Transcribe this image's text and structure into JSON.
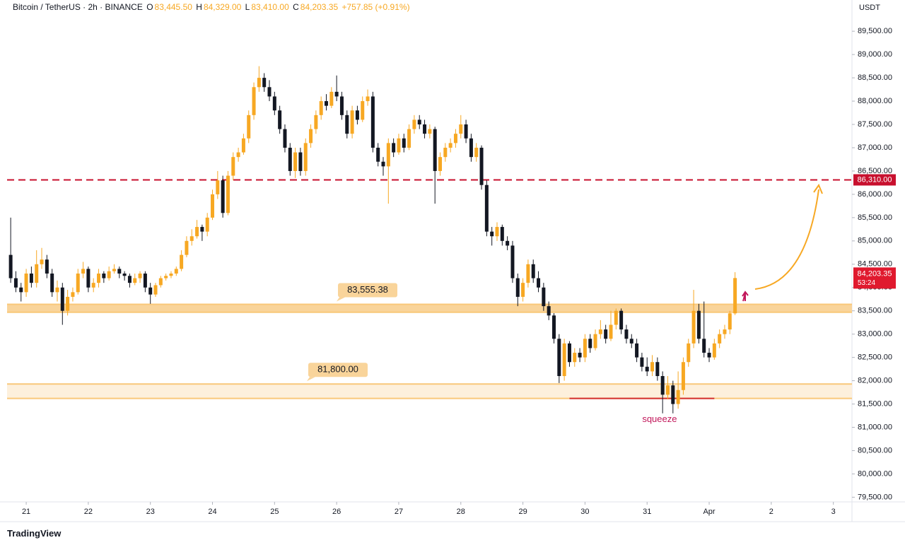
{
  "header": {
    "symbol": "Bitcoin / TetherUS · 2h · BINANCE",
    "ohlc": [
      {
        "label": "O",
        "value": "83,445.50"
      },
      {
        "label": "H",
        "value": "84,329.00"
      },
      {
        "label": "L",
        "value": "83,410.00"
      },
      {
        "label": "C",
        "value": "84,203.35"
      }
    ],
    "change": "+757.85 (+0.91%)"
  },
  "footer": {
    "brand": "TradingView"
  },
  "chart_data": {
    "type": "candlestick",
    "currency": "USDT",
    "up_color": "#f7a823",
    "down_color": "#131722",
    "ylim": [
      79400,
      90170
    ],
    "xlim": [
      -0.7,
      162.6
    ],
    "yticks": [
      {
        "value": 79500,
        "label": "79,500.00"
      },
      {
        "value": 80000,
        "label": "80,000.00"
      },
      {
        "value": 80500,
        "label": "80,500.00"
      },
      {
        "value": 81000,
        "label": "81,000.00"
      },
      {
        "value": 81500,
        "label": "81,500.00"
      },
      {
        "value": 82000,
        "label": "82,000.00"
      },
      {
        "value": 82500,
        "label": "82,500.00"
      },
      {
        "value": 83000,
        "label": "83,000.00"
      },
      {
        "value": 83500,
        "label": "83,500.00"
      },
      {
        "value": 84000,
        "label": "84,000.00"
      },
      {
        "value": 84500,
        "label": "84,500.00"
      },
      {
        "value": 85000,
        "label": "85,000.00"
      },
      {
        "value": 85500,
        "label": "85,500.00"
      },
      {
        "value": 86000,
        "label": "86,000.00"
      },
      {
        "value": 86500,
        "label": "86,500.00"
      },
      {
        "value": 87000,
        "label": "87,000.00"
      },
      {
        "value": 87500,
        "label": "87,500.00"
      },
      {
        "value": 88000,
        "label": "88,000.00"
      },
      {
        "value": 88500,
        "label": "88,500.00"
      },
      {
        "value": 89000,
        "label": "89,000.00"
      },
      {
        "value": 89500,
        "label": "89,500.00"
      }
    ],
    "xticks": [
      {
        "value": 3,
        "label": "21"
      },
      {
        "value": 15,
        "label": "22"
      },
      {
        "value": 27,
        "label": "23"
      },
      {
        "value": 39,
        "label": "24"
      },
      {
        "value": 51,
        "label": "25"
      },
      {
        "value": 63,
        "label": "26"
      },
      {
        "value": 75,
        "label": "27"
      },
      {
        "value": 87,
        "label": "28"
      },
      {
        "value": 99,
        "label": "29"
      },
      {
        "value": 111,
        "label": "30"
      },
      {
        "value": 123,
        "label": "31"
      },
      {
        "value": 135,
        "label": "Apr"
      },
      {
        "value": 147,
        "label": "2"
      },
      {
        "value": 159,
        "label": "3"
      }
    ],
    "grid": false,
    "levels": [
      {
        "value": 86310,
        "label": "86,310.00",
        "color": "#c8102e"
      }
    ],
    "zones": [
      {
        "low": 83470,
        "high": 83640,
        "label": "83,555.38",
        "color": "#f9d49a"
      },
      {
        "low": 81620,
        "high": 81930,
        "label": "81,800.00",
        "color": "#fdf0dc"
      }
    ],
    "last_price": {
      "value": 84203.35,
      "label": "84,203.35",
      "countdown": "53:24",
      "color": "#e0192e"
    },
    "annotation": {
      "text": "squeeze",
      "value": 81620,
      "from": 108,
      "to": 136,
      "color": "#c2185b"
    },
    "ohlc": [
      [
        84700,
        85500,
        84100,
        84200
      ],
      [
        84200,
        84350,
        83900,
        84000
      ],
      [
        84000,
        84100,
        83700,
        83900
      ],
      [
        83900,
        84400,
        83800,
        84300
      ],
      [
        84300,
        84450,
        84000,
        84100
      ],
      [
        84100,
        84800,
        84000,
        84500
      ],
      [
        84500,
        84850,
        84400,
        84600
      ],
      [
        84600,
        84700,
        84200,
        84300
      ],
      [
        84300,
        84400,
        83800,
        83900
      ],
      [
        83900,
        84150,
        83700,
        84000
      ],
      [
        84000,
        84100,
        83200,
        83500
      ],
      [
        83500,
        83950,
        83400,
        83800
      ],
      [
        83800,
        84000,
        83700,
        83900
      ],
      [
        83900,
        84400,
        83850,
        84300
      ],
      [
        84300,
        84550,
        84200,
        84400
      ],
      [
        84400,
        84450,
        83900,
        84000
      ],
      [
        84000,
        84200,
        83900,
        84100
      ],
      [
        84100,
        84400,
        84000,
        84300
      ],
      [
        84300,
        84350,
        84100,
        84200
      ],
      [
        84200,
        84450,
        84150,
        84350
      ],
      [
        84350,
        84500,
        84300,
        84400
      ],
      [
        84400,
        84450,
        84200,
        84300
      ],
      [
        84300,
        84350,
        84150,
        84250
      ],
      [
        84250,
        84300,
        84000,
        84100
      ],
      [
        84100,
        84300,
        84050,
        84200
      ],
      [
        84200,
        84350,
        84100,
        84300
      ],
      [
        84300,
        84350,
        83900,
        84000
      ],
      [
        84000,
        84100,
        83650,
        83850
      ],
      [
        83850,
        84100,
        83800,
        84050
      ],
      [
        84050,
        84250,
        84000,
        84200
      ],
      [
        84200,
        84300,
        84150,
        84250
      ],
      [
        84250,
        84350,
        84200,
        84300
      ],
      [
        84300,
        84450,
        84250,
        84400
      ],
      [
        84400,
        84800,
        84350,
        84700
      ],
      [
        84700,
        85100,
        84650,
        85000
      ],
      [
        85000,
        85250,
        84900,
        85100
      ],
      [
        85100,
        85450,
        85050,
        85300
      ],
      [
        85300,
        85350,
        85000,
        85200
      ],
      [
        85200,
        85600,
        85100,
        85500
      ],
      [
        85500,
        86100,
        85450,
        86000
      ],
      [
        86000,
        86500,
        85900,
        86300
      ],
      [
        86300,
        86400,
        85500,
        85600
      ],
      [
        85600,
        86500,
        85550,
        86400
      ],
      [
        86400,
        86900,
        86300,
        86800
      ],
      [
        86800,
        87000,
        86700,
        86900
      ],
      [
        86900,
        87300,
        86850,
        87200
      ],
      [
        87200,
        87800,
        87100,
        87700
      ],
      [
        87700,
        88400,
        87600,
        88300
      ],
      [
        88300,
        88750,
        88200,
        88500
      ],
      [
        88500,
        88600,
        88200,
        88300
      ],
      [
        88300,
        88450,
        88000,
        88100
      ],
      [
        88100,
        88200,
        87700,
        87800
      ],
      [
        87800,
        87900,
        87300,
        87400
      ],
      [
        87400,
        87500,
        86900,
        87000
      ],
      [
        87000,
        87100,
        86400,
        86500
      ],
      [
        86500,
        87000,
        86350,
        86900
      ],
      [
        86900,
        87000,
        86400,
        86500
      ],
      [
        86500,
        87200,
        86400,
        87100
      ],
      [
        87100,
        87500,
        87000,
        87400
      ],
      [
        87400,
        87800,
        87300,
        87700
      ],
      [
        87700,
        88100,
        87600,
        88000
      ],
      [
        88000,
        88150,
        87800,
        87900
      ],
      [
        87900,
        88300,
        87850,
        88200
      ],
      [
        88200,
        88550,
        88000,
        88100
      ],
      [
        88100,
        88200,
        87600,
        87700
      ],
      [
        87700,
        87800,
        87200,
        87300
      ],
      [
        87300,
        87900,
        87200,
        87800
      ],
      [
        87800,
        87900,
        87500,
        87600
      ],
      [
        87600,
        88100,
        87550,
        88000
      ],
      [
        88000,
        88250,
        87900,
        88100
      ],
      [
        88100,
        88200,
        86900,
        87000
      ],
      [
        87000,
        87100,
        86600,
        86700
      ],
      [
        86700,
        86800,
        86400,
        86600
      ],
      [
        86600,
        87200,
        85800,
        87100
      ],
      [
        87100,
        87200,
        86800,
        86900
      ],
      [
        86900,
        87300,
        86850,
        87200
      ],
      [
        87200,
        87300,
        86900,
        87000
      ],
      [
        87000,
        87500,
        86950,
        87400
      ],
      [
        87400,
        87700,
        87300,
        87600
      ],
      [
        87600,
        87700,
        87400,
        87500
      ],
      [
        87500,
        87600,
        87200,
        87300
      ],
      [
        87300,
        87500,
        87200,
        87400
      ],
      [
        87400,
        87450,
        85800,
        86500
      ],
      [
        86500,
        86900,
        86400,
        86800
      ],
      [
        86800,
        87100,
        86700,
        87000
      ],
      [
        87000,
        87200,
        86900,
        87100
      ],
      [
        87100,
        87400,
        87000,
        87300
      ],
      [
        87300,
        87700,
        87200,
        87500
      ],
      [
        87500,
        87600,
        87100,
        87200
      ],
      [
        87200,
        87300,
        86700,
        86800
      ],
      [
        86800,
        87100,
        86700,
        87000
      ],
      [
        87000,
        87050,
        86100,
        86200
      ],
      [
        86200,
        86300,
        85100,
        85200
      ],
      [
        85200,
        85300,
        84900,
        85100
      ],
      [
        85100,
        85400,
        85000,
        85300
      ],
      [
        85300,
        85350,
        84900,
        85000
      ],
      [
        85000,
        85100,
        84800,
        84900
      ],
      [
        84900,
        85000,
        84100,
        84200
      ],
      [
        84200,
        84300,
        83600,
        83800
      ],
      [
        83800,
        84200,
        83700,
        84100
      ],
      [
        84100,
        84600,
        84000,
        84500
      ],
      [
        84500,
        84600,
        84100,
        84200
      ],
      [
        84200,
        84350,
        83900,
        84000
      ],
      [
        84000,
        84100,
        83500,
        83600
      ],
      [
        83600,
        83700,
        83300,
        83400
      ],
      [
        83400,
        83450,
        82800,
        82900
      ],
      [
        82900,
        83000,
        81950,
        82100
      ],
      [
        82100,
        82900,
        82000,
        82800
      ],
      [
        82800,
        82850,
        82300,
        82400
      ],
      [
        82400,
        82700,
        82300,
        82600
      ],
      [
        82600,
        82700,
        82400,
        82500
      ],
      [
        82500,
        83000,
        82400,
        82900
      ],
      [
        82900,
        83000,
        82600,
        82700
      ],
      [
        82700,
        83100,
        82650,
        83000
      ],
      [
        83000,
        83300,
        82900,
        83100
      ],
      [
        83100,
        83200,
        82800,
        82900
      ],
      [
        82900,
        83500,
        82850,
        83200
      ],
      [
        83200,
        83550,
        83100,
        83500
      ],
      [
        83500,
        83550,
        83000,
        83100
      ],
      [
        83100,
        83200,
        82800,
        82900
      ],
      [
        82900,
        83000,
        82700,
        82800
      ],
      [
        82800,
        82900,
        82400,
        82500
      ],
      [
        82500,
        82600,
        82200,
        82300
      ],
      [
        82300,
        82500,
        82100,
        82200
      ],
      [
        82200,
        82550,
        82100,
        82400
      ],
      [
        82400,
        82500,
        82000,
        82100
      ],
      [
        82100,
        82200,
        81300,
        81700
      ],
      [
        81700,
        82100,
        81600,
        81900
      ],
      [
        81900,
        82000,
        81300,
        81500
      ],
      [
        81500,
        82200,
        81400,
        81800
      ],
      [
        81800,
        82500,
        81700,
        82400
      ],
      [
        82400,
        82900,
        82300,
        82800
      ],
      [
        82800,
        83950,
        82700,
        83500
      ],
      [
        83500,
        83650,
        82800,
        82900
      ],
      [
        82900,
        83700,
        82500,
        82600
      ],
      [
        82600,
        82700,
        82400,
        82500
      ],
      [
        82500,
        82900,
        82450,
        82800
      ],
      [
        82800,
        83100,
        82700,
        83000
      ],
      [
        83000,
        83200,
        82900,
        83100
      ],
      [
        83100,
        83500,
        83000,
        83445.5
      ],
      [
        83445.5,
        84329,
        83410,
        84203.35
      ]
    ]
  }
}
